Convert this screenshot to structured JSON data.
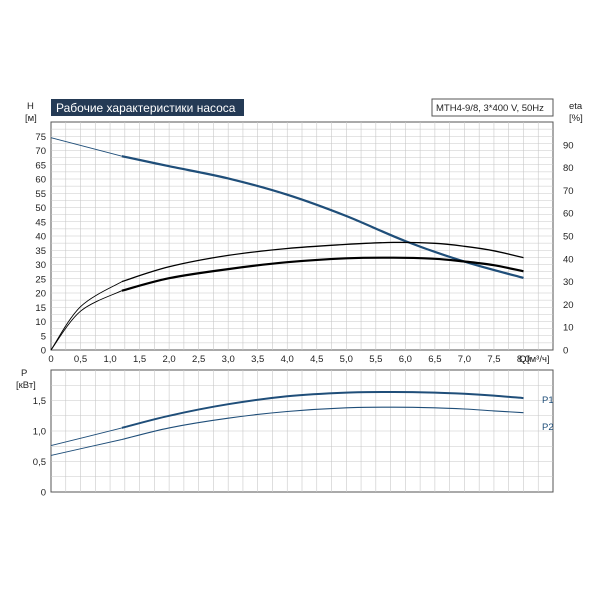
{
  "chart_data": [
    {
      "type": "line",
      "title": "Рабочие характеристики насоса",
      "model": "MTH4-9/8, 3*400 V, 50Hz",
      "y_axis_left": {
        "label": "H",
        "unit": "[м]",
        "range": [
          0,
          80
        ],
        "ticks": [
          0,
          5,
          10,
          15,
          20,
          25,
          30,
          35,
          40,
          45,
          50,
          55,
          60,
          65,
          70,
          75
        ]
      },
      "y_axis_right": {
        "label": "eta",
        "unit": "[%]",
        "range": [
          0,
          100
        ],
        "ticks": [
          0,
          10,
          20,
          30,
          40,
          50,
          60,
          70,
          80,
          90
        ]
      },
      "x_axis": {
        "label": "Q",
        "unit": "[м³/ч]",
        "range": [
          0,
          8.5
        ],
        "ticks": [
          "0",
          "0,5",
          "1,0",
          "1,5",
          "2,0",
          "2,5",
          "3,0",
          "3,5",
          "4,0",
          "4,5",
          "5,0",
          "5,5",
          "6,0",
          "6,5",
          "7,0",
          "7,5",
          "8,0"
        ]
      },
      "grid": true,
      "series": [
        {
          "kind": "head",
          "axis": "left",
          "color": "#1f4e79",
          "x": [
            0,
            1.2,
            2,
            3,
            4,
            5,
            6,
            7,
            8.0
          ],
          "y": [
            74.5,
            68.0,
            64.5,
            60.2,
            54.5,
            47.0,
            38.2,
            31.0,
            25.3
          ]
        },
        {
          "kind": "efficiency-upper",
          "axis": "right",
          "color": "#000000",
          "x": [
            0,
            0.5,
            1.2,
            2,
            3,
            4,
            5,
            5.8,
            6.5,
            7,
            7.5,
            8.0
          ],
          "y": [
            0,
            19,
            30,
            36.5,
            41.5,
            44.5,
            46.3,
            47.2,
            46.8,
            45.5,
            43.5,
            40.5
          ]
        },
        {
          "kind": "efficiency-lower",
          "axis": "right",
          "color": "#000000",
          "x": [
            0,
            0.5,
            1.2,
            2,
            3,
            4,
            5,
            5.8,
            6.5,
            7,
            7.5,
            8.0
          ],
          "y": [
            0,
            17,
            26,
            31.5,
            35.5,
            38.5,
            40.2,
            40.5,
            40.0,
            38.8,
            37.2,
            34.5
          ]
        }
      ]
    },
    {
      "type": "line",
      "y_axis": {
        "label": "P",
        "unit": "[кВт]",
        "range": [
          0,
          2
        ],
        "ticks": [
          "0",
          "0,5",
          "1,0",
          "1,5"
        ]
      },
      "x_axis": {
        "range": [
          0,
          8.5
        ]
      },
      "grid": true,
      "series": [
        {
          "name": "P1",
          "color": "#1f4e79",
          "x": [
            0,
            1.2,
            2,
            3,
            4,
            5,
            5.8,
            6.5,
            7,
            7.5,
            8.0
          ],
          "y": [
            0.76,
            1.05,
            1.25,
            1.44,
            1.57,
            1.63,
            1.64,
            1.63,
            1.61,
            1.58,
            1.54
          ]
        },
        {
          "name": "P2",
          "color": "#1f4e79",
          "x": [
            0,
            1.2,
            2,
            3,
            4,
            5,
            5.8,
            6.5,
            7,
            7.5,
            8.0
          ],
          "y": [
            0.6,
            0.86,
            1.05,
            1.21,
            1.32,
            1.38,
            1.39,
            1.38,
            1.36,
            1.33,
            1.3
          ]
        }
      ]
    }
  ]
}
